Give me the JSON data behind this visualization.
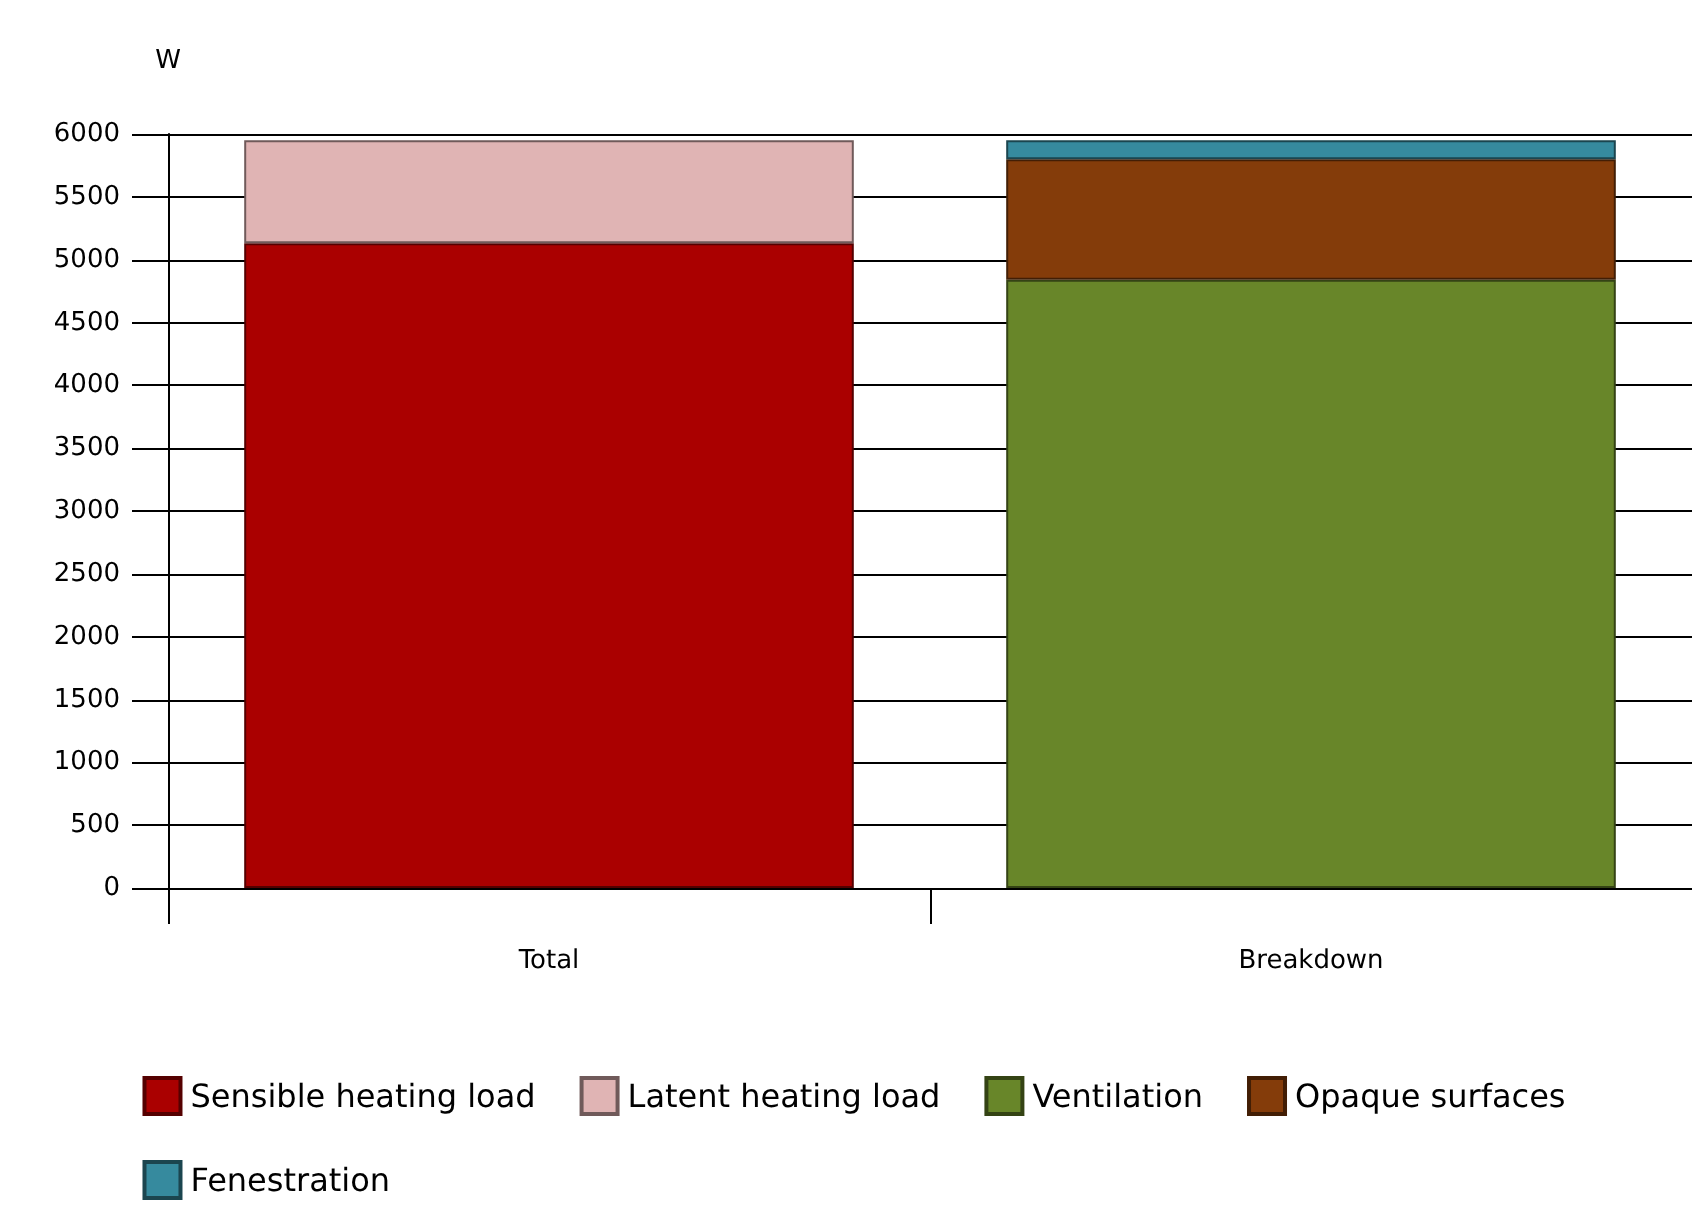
{
  "chart_data": {
    "type": "bar",
    "ylabel": "W",
    "categories": [
      "Total",
      "Breakdown"
    ],
    "stacked": true,
    "series": [
      {
        "name": "Sensible heating load",
        "color": "#aa0000",
        "values": [
          5130,
          null
        ]
      },
      {
        "name": "Latent heating load",
        "color": "#e0b4b4",
        "values": [
          820,
          null
        ]
      },
      {
        "name": "Ventilation",
        "color": "#688629",
        "values": [
          null,
          4840
        ]
      },
      {
        "name": "Opaque surfaces",
        "color": "#843c0a",
        "values": [
          null,
          960
        ]
      },
      {
        "name": "Fenestration",
        "color": "#368a9e",
        "values": [
          null,
          150
        ]
      }
    ],
    "ylim": [
      0,
      6000
    ],
    "yticks": [
      0,
      500,
      1000,
      1500,
      2000,
      2500,
      3000,
      3500,
      4000,
      4500,
      5000,
      5500,
      6000
    ],
    "grid": "y",
    "legend": "bottom"
  }
}
